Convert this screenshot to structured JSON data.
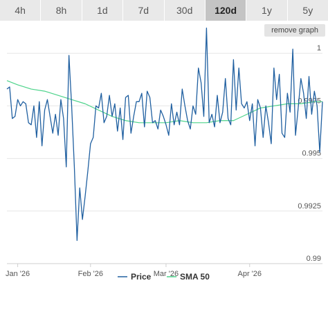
{
  "tabs": [
    {
      "label": "4h",
      "active": false
    },
    {
      "label": "8h",
      "active": false
    },
    {
      "label": "1d",
      "active": false
    },
    {
      "label": "7d",
      "active": false
    },
    {
      "label": "30d",
      "active": false
    },
    {
      "label": "120d",
      "active": true
    },
    {
      "label": "1y",
      "active": false
    },
    {
      "label": "5y",
      "active": false
    }
  ],
  "remove_graph_label": "remove graph",
  "colors": {
    "price": "#1f5fa0",
    "sma": "#4cd38a",
    "grid": "#e6e6e6",
    "axis": "#cfcfcf"
  },
  "chart_data": {
    "type": "line",
    "title": "",
    "xlabel": "",
    "ylabel": "",
    "ylim": [
      0.99,
      1.0005
    ],
    "yticks": [
      1,
      0.9975,
      0.995,
      0.9925,
      0.99
    ],
    "ytick_labels": [
      "1",
      "0.9975",
      "0.995",
      "0.9925",
      "0.99"
    ],
    "xlim": [
      "2026-01-01",
      "2026-04-28"
    ],
    "xticks": [
      "2026-01-05",
      "2026-02-01",
      "2026-03-01",
      "2026-04-01"
    ],
    "xtick_labels": [
      "Jan '26",
      "Feb '26",
      "Mar '26",
      "Apr '26"
    ],
    "legend_position": "bottom-center",
    "grid": true,
    "series": [
      {
        "name": "Price",
        "x": [
          "2026-01-01",
          "2026-01-02",
          "2026-01-03",
          "2026-01-04",
          "2026-01-05",
          "2026-01-06",
          "2026-01-07",
          "2026-01-08",
          "2026-01-09",
          "2026-01-10",
          "2026-01-11",
          "2026-01-12",
          "2026-01-13",
          "2026-01-14",
          "2026-01-15",
          "2026-01-16",
          "2026-01-17",
          "2026-01-18",
          "2026-01-19",
          "2026-01-20",
          "2026-01-21",
          "2026-01-22",
          "2026-01-23",
          "2026-01-24",
          "2026-01-25",
          "2026-01-26",
          "2026-01-27",
          "2026-01-28",
          "2026-01-29",
          "2026-01-30",
          "2026-01-31",
          "2026-02-01",
          "2026-02-02",
          "2026-02-03",
          "2026-02-04",
          "2026-02-05",
          "2026-02-06",
          "2026-02-07",
          "2026-02-08",
          "2026-02-09",
          "2026-02-10",
          "2026-02-11",
          "2026-02-12",
          "2026-02-13",
          "2026-02-14",
          "2026-02-15",
          "2026-02-16",
          "2026-02-17",
          "2026-02-18",
          "2026-02-19",
          "2026-02-20",
          "2026-02-21",
          "2026-02-22",
          "2026-02-23",
          "2026-02-24",
          "2026-02-25",
          "2026-02-26",
          "2026-02-27",
          "2026-02-28",
          "2026-03-01",
          "2026-03-02",
          "2026-03-03",
          "2026-03-04",
          "2026-03-05",
          "2026-03-06",
          "2026-03-07",
          "2026-03-08",
          "2026-03-09",
          "2026-03-10",
          "2026-03-11",
          "2026-03-12",
          "2026-03-13",
          "2026-03-14",
          "2026-03-15",
          "2026-03-16",
          "2026-03-17",
          "2026-03-18",
          "2026-03-19",
          "2026-03-20",
          "2026-03-21",
          "2026-03-22",
          "2026-03-23",
          "2026-03-24",
          "2026-03-25",
          "2026-03-26",
          "2026-03-27",
          "2026-03-28",
          "2026-03-29",
          "2026-03-30",
          "2026-03-31",
          "2026-04-01",
          "2026-04-02",
          "2026-04-03",
          "2026-04-04",
          "2026-04-05",
          "2026-04-06",
          "2026-04-07",
          "2026-04-08",
          "2026-04-09",
          "2026-04-10",
          "2026-04-11",
          "2026-04-12",
          "2026-04-13",
          "2026-04-14",
          "2026-04-15",
          "2026-04-16",
          "2026-04-17",
          "2026-04-18",
          "2026-04-19",
          "2026-04-20",
          "2026-04-21",
          "2026-04-22",
          "2026-04-23",
          "2026-04-24",
          "2026-04-25",
          "2026-04-26",
          "2026-04-27",
          "2026-04-28"
        ],
        "values": [
          0.9983,
          0.9984,
          0.9969,
          0.997,
          0.9978,
          0.9975,
          0.9977,
          0.9976,
          0.9967,
          0.9966,
          0.9975,
          0.996,
          0.9977,
          0.9956,
          0.9973,
          0.9978,
          0.997,
          0.9962,
          0.9971,
          0.9961,
          0.9978,
          0.9969,
          0.9946,
          0.9999,
          0.9975,
          0.9946,
          0.9911,
          0.9936,
          0.9921,
          0.9932,
          0.9944,
          0.9957,
          0.996,
          0.9975,
          0.9974,
          0.9981,
          0.9967,
          0.997,
          0.998,
          0.997,
          0.9976,
          0.9963,
          0.9974,
          0.9959,
          0.9979,
          0.998,
          0.9962,
          0.997,
          0.9977,
          0.9977,
          0.9981,
          0.9965,
          0.9982,
          0.9979,
          0.9967,
          0.9968,
          0.9964,
          0.9973,
          0.997,
          0.9966,
          0.9961,
          0.9976,
          0.9966,
          0.9972,
          0.9966,
          0.9983,
          0.9975,
          0.9968,
          0.9964,
          0.9975,
          0.9971,
          0.9993,
          0.9986,
          0.997,
          1.0012,
          0.9967,
          0.9971,
          0.9965,
          0.998,
          0.9967,
          0.9972,
          0.9988,
          0.9969,
          0.9966,
          0.9997,
          0.9973,
          0.9993,
          0.9976,
          0.9974,
          0.9977,
          0.9968,
          0.9976,
          0.9956,
          0.9978,
          0.9974,
          0.996,
          0.9975,
          0.9967,
          0.9957,
          0.9993,
          0.9978,
          0.999,
          0.9962,
          0.996,
          0.9981,
          0.9972,
          1.0002,
          0.9961,
          0.9974,
          0.9988,
          0.9981,
          0.9969,
          0.9989,
          0.9971,
          0.9982,
          0.9975,
          0.9953,
          0.9977
        ]
      },
      {
        "name": "SMA 50",
        "x": [
          "2026-01-01",
          "2026-01-05",
          "2026-01-10",
          "2026-01-15",
          "2026-01-20",
          "2026-01-25",
          "2026-01-30",
          "2026-02-04",
          "2026-02-09",
          "2026-02-14",
          "2026-02-19",
          "2026-02-24",
          "2026-03-01",
          "2026-03-06",
          "2026-03-11",
          "2026-03-16",
          "2026-03-21",
          "2026-03-26",
          "2026-03-31",
          "2026-04-05",
          "2026-04-10",
          "2026-04-15",
          "2026-04-20",
          "2026-04-25",
          "2026-04-28"
        ],
        "values": [
          0.9987,
          0.9985,
          0.9983,
          0.9982,
          0.998,
          0.9978,
          0.9976,
          0.9973,
          0.997,
          0.9968,
          0.9967,
          0.9967,
          0.9967,
          0.9968,
          0.9967,
          0.9967,
          0.9968,
          0.9968,
          0.9971,
          0.9974,
          0.9975,
          0.9976,
          0.9976,
          0.9977,
          0.9977
        ]
      }
    ]
  }
}
